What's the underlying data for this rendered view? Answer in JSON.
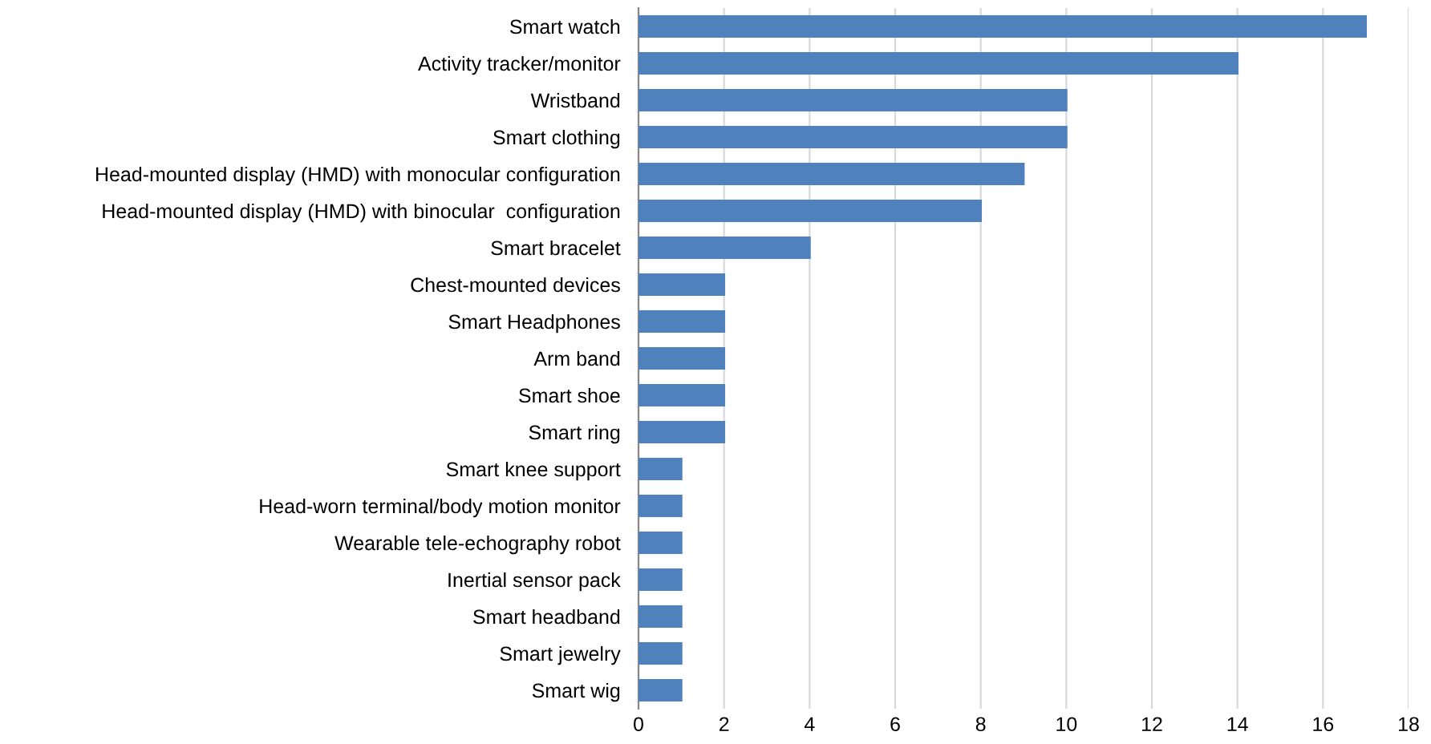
{
  "chart_data": {
    "type": "bar",
    "orientation": "horizontal",
    "categories": [
      "Smart watch",
      "Activity tracker/monitor",
      "Wristband",
      "Smart clothing",
      "Head-mounted display (HMD) with monocular configuration",
      "Head-mounted display (HMD) with binocular  configuration",
      "Smart bracelet",
      "Chest-mounted devices",
      "Smart Headphones",
      "Arm band",
      "Smart shoe",
      "Smart ring",
      "Smart knee support",
      "Head-worn terminal/body motion monitor",
      "Wearable tele-echography robot",
      "Inertial sensor pack",
      "Smart headband",
      "Smart jewelry",
      "Smart wig"
    ],
    "values": [
      17,
      14,
      10,
      10,
      9,
      8,
      4,
      2,
      2,
      2,
      2,
      2,
      1,
      1,
      1,
      1,
      1,
      1,
      1
    ],
    "color": "#4f81bd",
    "xlim": [
      0,
      18
    ],
    "xticks": [
      0,
      2,
      4,
      6,
      8,
      10,
      12,
      14,
      16,
      18
    ],
    "grid": "x"
  }
}
